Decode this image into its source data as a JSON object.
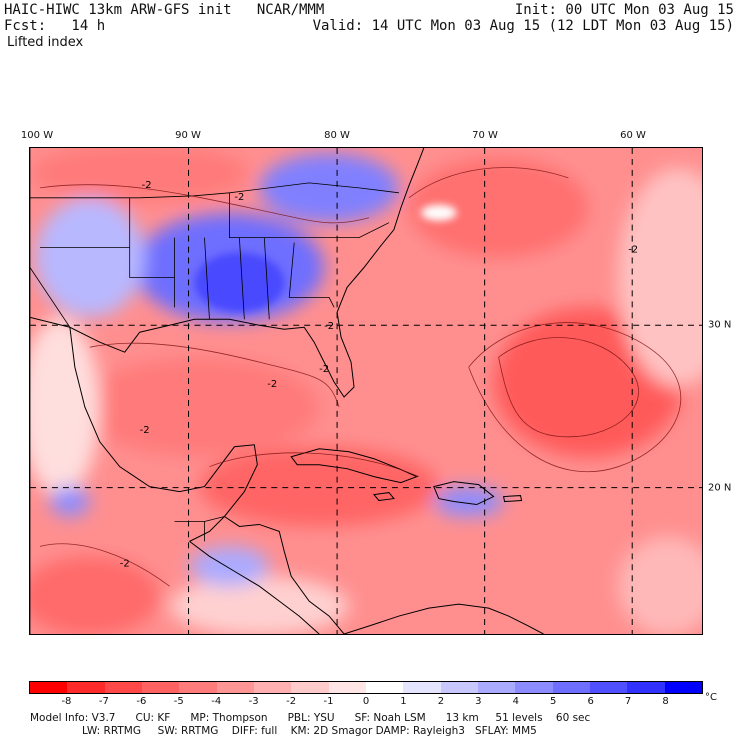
{
  "header": {
    "line1_left": "HAIC-HIWC 13km ARW-GFS init   NCAR/MMM",
    "line2_left": "Fcst:   14 h",
    "line3_left": "Lifted index",
    "line1_right": "Init: 00 UTC Mon 03 Aug 15",
    "line2_right": "Valid: 14 UTC Mon 03 Aug 15 (12 LDT Mon 03 Aug 15)"
  },
  "map": {
    "lon_labels": [
      "100 W",
      "90 W",
      "80 W",
      "70 W",
      "60 W"
    ],
    "lat_labels": [
      "30 N",
      "20 N"
    ],
    "contour_labels": [
      "-2",
      "-2",
      "-2",
      "-2",
      "-2",
      "-2",
      "-2",
      "-2"
    ]
  },
  "colorbar": {
    "colors": [
      "#ff0000",
      "#ff2a2a",
      "#ff4848",
      "#ff6262",
      "#ff7c7c",
      "#ff9696",
      "#ffb0b0",
      "#ffcbcb",
      "#ffe5e5",
      "#ffffff",
      "#e5e5ff",
      "#c8c8ff",
      "#aaaaff",
      "#8c8cff",
      "#6e6eff",
      "#5050ff",
      "#3232ff",
      "#0000ff"
    ],
    "ticks": [
      "-8",
      "-7",
      "-6",
      "-5",
      "-4",
      "-3",
      "-2",
      "-1",
      "0",
      "1",
      "2",
      "3",
      "4",
      "5",
      "6",
      "7",
      "8"
    ],
    "unit": "°C"
  },
  "footer": {
    "line1": "Model Info: V3.7      CU: KF      MP: Thompson      PBL: YSU      SF: Noah LSM      13 km     51 levels    60 sec",
    "line2": "LW: RRTMG     SW: RRTMG    DIFF: full    KM: 2D Smagor DAMP: Rayleigh3   SFLAY: MM5"
  }
}
